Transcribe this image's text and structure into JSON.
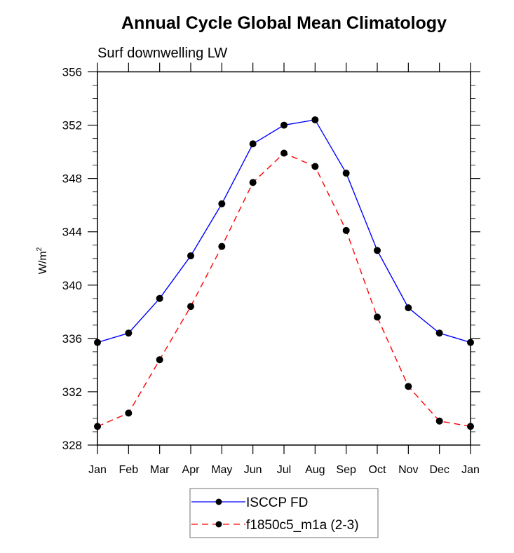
{
  "chart_data": {
    "type": "line",
    "title": "Annual Cycle Global Mean Climatology",
    "subtitle": "Surf downwelling LW",
    "xlabel": "",
    "ylabel": "W/m",
    "ylabel_superscript": "2",
    "categories": [
      "Jan",
      "Feb",
      "Mar",
      "Apr",
      "May",
      "Jun",
      "Jul",
      "Aug",
      "Sep",
      "Oct",
      "Nov",
      "Dec",
      "Jan"
    ],
    "ylim": [
      328,
      356
    ],
    "yticks": [
      328,
      332,
      336,
      340,
      344,
      348,
      352,
      356
    ],
    "ytick_labels": [
      "328",
      "332",
      "336",
      "340",
      "344",
      "348",
      "352",
      "356"
    ],
    "y_minor_step": 1,
    "grid": false,
    "legend_position": "bottom-center",
    "series": [
      {
        "name": "ISCCP FD",
        "color": "#0000ff",
        "line_style": "solid",
        "marker": "filled-circle",
        "marker_color": "#000000",
        "values": [
          335.7,
          336.4,
          339.0,
          342.2,
          346.1,
          350.6,
          352.0,
          352.4,
          348.4,
          342.6,
          338.3,
          336.4,
          335.7
        ]
      },
      {
        "name": "f1850c5_m1a (2-3)",
        "color": "#ff0000",
        "line_style": "dashed",
        "marker": "filled-circle",
        "marker_color": "#000000",
        "values": [
          329.4,
          330.4,
          334.4,
          338.4,
          342.9,
          347.7,
          349.9,
          348.9,
          344.1,
          337.6,
          332.4,
          329.8,
          329.4
        ]
      }
    ]
  }
}
